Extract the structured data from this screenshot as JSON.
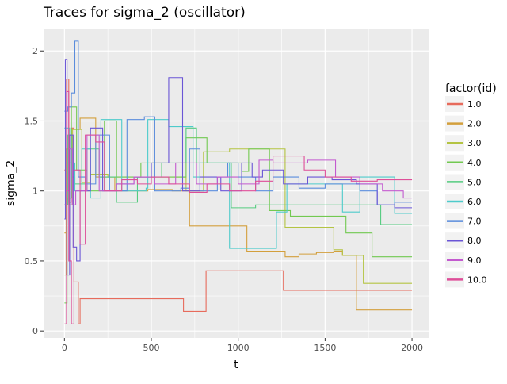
{
  "chart_data": {
    "type": "line",
    "title": "Traces for sigma_2 (oscillator)",
    "xlabel": "t",
    "ylabel": "sigma_2",
    "xlim": [
      -120,
      2100
    ],
    "ylim": [
      -0.05,
      2.16
    ],
    "x_ticks": [
      0,
      500,
      1000,
      1500,
      2000
    ],
    "x_tick_labels": [
      "0",
      "500",
      "1000",
      "1500",
      "2000"
    ],
    "y_ticks": [
      0,
      0.5,
      1,
      1.5,
      2
    ],
    "y_tick_labels": [
      "0",
      "0.5",
      "1",
      "1.5",
      "2"
    ],
    "grid": true,
    "legend": {
      "title": "factor(id)",
      "position": "right"
    },
    "series": [
      {
        "name": "1.0",
        "color": "#E76B5C",
        "steps": [
          [
            0,
            1.15
          ],
          [
            12,
            1.8
          ],
          [
            25,
            0.92
          ],
          [
            38,
            1.45
          ],
          [
            55,
            0.35
          ],
          [
            80,
            0.05
          ],
          [
            90,
            0.23
          ],
          [
            685,
            0.14
          ],
          [
            815,
            0.43
          ],
          [
            1260,
            0.29
          ],
          [
            2000,
            0.29
          ]
        ]
      },
      {
        "name": "2.0",
        "color": "#D39F3C",
        "steps": [
          [
            0,
            0.7
          ],
          [
            12,
            1.2
          ],
          [
            28,
            0.95
          ],
          [
            45,
            1.44
          ],
          [
            90,
            1.52
          ],
          [
            180,
            1.1
          ],
          [
            290,
            1.0
          ],
          [
            480,
            1.01
          ],
          [
            620,
            1.0
          ],
          [
            720,
            0.75
          ],
          [
            1050,
            0.57
          ],
          [
            1270,
            0.53
          ],
          [
            1350,
            0.55
          ],
          [
            1450,
            0.56
          ],
          [
            1550,
            0.57
          ],
          [
            1600,
            0.54
          ],
          [
            1680,
            0.15
          ],
          [
            2000,
            0.15
          ]
        ]
      },
      {
        "name": "3.0",
        "color": "#B4C443",
        "steps": [
          [
            0,
            0.4
          ],
          [
            10,
            1.3
          ],
          [
            28,
            0.9
          ],
          [
            45,
            1.44
          ],
          [
            100,
            1.06
          ],
          [
            150,
            1.12
          ],
          [
            250,
            1.1
          ],
          [
            400,
            1.1
          ],
          [
            600,
            1.1
          ],
          [
            700,
            1.0
          ],
          [
            800,
            1.28
          ],
          [
            950,
            1.3
          ],
          [
            1270,
            0.74
          ],
          [
            1550,
            0.58
          ],
          [
            1600,
            0.54
          ],
          [
            1720,
            0.34
          ],
          [
            2000,
            0.34
          ]
        ]
      },
      {
        "name": "4.0",
        "color": "#72C951",
        "steps": [
          [
            0,
            0.2
          ],
          [
            15,
            0.95
          ],
          [
            40,
            1.6
          ],
          [
            70,
            1.15
          ],
          [
            130,
            1.0
          ],
          [
            230,
            1.5
          ],
          [
            300,
            1.1
          ],
          [
            440,
            1.2
          ],
          [
            560,
            1.1
          ],
          [
            700,
            1.38
          ],
          [
            820,
            1.2
          ],
          [
            900,
            1.2
          ],
          [
            1020,
            1.14
          ],
          [
            1060,
            1.3
          ],
          [
            1180,
            0.86
          ],
          [
            1300,
            0.82
          ],
          [
            1550,
            0.82
          ],
          [
            1620,
            0.7
          ],
          [
            1770,
            0.53
          ],
          [
            2000,
            0.53
          ]
        ]
      },
      {
        "name": "5.0",
        "color": "#55CC80",
        "steps": [
          [
            0,
            0.9
          ],
          [
            20,
            1.4
          ],
          [
            40,
            1.1
          ],
          [
            60,
            1.05
          ],
          [
            130,
            1.3
          ],
          [
            200,
            1.1
          ],
          [
            300,
            0.92
          ],
          [
            420,
            1.1
          ],
          [
            560,
            1.2
          ],
          [
            700,
            1.45
          ],
          [
            760,
            1.2
          ],
          [
            850,
            1.2
          ],
          [
            960,
            0.88
          ],
          [
            1100,
            0.9
          ],
          [
            1200,
            0.9
          ],
          [
            1380,
            0.9
          ],
          [
            1560,
            0.9
          ],
          [
            1820,
            0.76
          ],
          [
            2000,
            0.76
          ]
        ]
      },
      {
        "name": "6.0",
        "color": "#4ECBCB",
        "steps": [
          [
            0,
            1.45
          ],
          [
            30,
            1.2
          ],
          [
            60,
            1.0
          ],
          [
            100,
            1.3
          ],
          [
            150,
            0.95
          ],
          [
            210,
            1.51
          ],
          [
            330,
            1.0
          ],
          [
            470,
            1.02
          ],
          [
            480,
            1.51
          ],
          [
            600,
            1.46
          ],
          [
            740,
            1.1
          ],
          [
            780,
            1.2
          ],
          [
            950,
            0.59
          ],
          [
            1100,
            0.59
          ],
          [
            1220,
            0.85
          ],
          [
            1280,
            1.05
          ],
          [
            1600,
            0.85
          ],
          [
            1700,
            1.1
          ],
          [
            1900,
            0.84
          ],
          [
            2000,
            0.84
          ]
        ]
      },
      {
        "name": "7.0",
        "color": "#5A8CDC",
        "steps": [
          [
            0,
            1.57
          ],
          [
            20,
            1.6
          ],
          [
            40,
            1.7
          ],
          [
            60,
            2.07
          ],
          [
            80,
            1.1
          ],
          [
            120,
            1.05
          ],
          [
            180,
            1.4
          ],
          [
            260,
            1.0
          ],
          [
            360,
            1.51
          ],
          [
            460,
            1.53
          ],
          [
            520,
            1.0
          ],
          [
            670,
            1.02
          ],
          [
            720,
            1.3
          ],
          [
            780,
            1.0
          ],
          [
            880,
            1.1
          ],
          [
            940,
            1.2
          ],
          [
            1000,
            1.1
          ],
          [
            1100,
            1.0
          ],
          [
            1200,
            1.1
          ],
          [
            1350,
            1.02
          ],
          [
            1500,
            1.05
          ],
          [
            1700,
            1.0
          ],
          [
            1800,
            0.9
          ],
          [
            1900,
            0.92
          ],
          [
            2000,
            0.92
          ]
        ]
      },
      {
        "name": "8.0",
        "color": "#6A55D6",
        "steps": [
          [
            0,
            0.8
          ],
          [
            5,
            1.94
          ],
          [
            15,
            0.4
          ],
          [
            30,
            1.4
          ],
          [
            50,
            0.6
          ],
          [
            70,
            0.5
          ],
          [
            90,
            1.0
          ],
          [
            150,
            1.45
          ],
          [
            220,
            1.0
          ],
          [
            300,
            1.05
          ],
          [
            400,
            1.1
          ],
          [
            500,
            1.2
          ],
          [
            600,
            1.81
          ],
          [
            680,
            1.0
          ],
          [
            780,
            1.1
          ],
          [
            900,
            1.0
          ],
          [
            1020,
            1.2
          ],
          [
            1080,
            1.1
          ],
          [
            1140,
            1.15
          ],
          [
            1260,
            1.05
          ],
          [
            1400,
            1.1
          ],
          [
            1540,
            1.08
          ],
          [
            1680,
            1.05
          ],
          [
            1800,
            0.9
          ],
          [
            1900,
            0.88
          ],
          [
            2000,
            0.88
          ]
        ]
      },
      {
        "name": "9.0",
        "color": "#C35ACF",
        "steps": [
          [
            0,
            0.9
          ],
          [
            12,
            1.0
          ],
          [
            25,
            1.3
          ],
          [
            45,
            0.9
          ],
          [
            65,
            1.0
          ],
          [
            130,
            1.4
          ],
          [
            200,
            1.0
          ],
          [
            300,
            1.05
          ],
          [
            400,
            1.1
          ],
          [
            520,
            1.05
          ],
          [
            640,
            1.2
          ],
          [
            760,
            1.05
          ],
          [
            880,
            1.1
          ],
          [
            1000,
            1.05
          ],
          [
            1120,
            1.22
          ],
          [
            1200,
            1.2
          ],
          [
            1400,
            1.22
          ],
          [
            1560,
            1.1
          ],
          [
            1700,
            1.05
          ],
          [
            1830,
            1.0
          ],
          [
            1950,
            0.95
          ],
          [
            2000,
            0.95
          ]
        ]
      },
      {
        "name": "10.0",
        "color": "#DE4E98",
        "steps": [
          [
            0,
            0.05
          ],
          [
            12,
            1.71
          ],
          [
            25,
            0.5
          ],
          [
            40,
            0.05
          ],
          [
            55,
            1.15
          ],
          [
            90,
            0.62
          ],
          [
            120,
            1.4
          ],
          [
            180,
            1.35
          ],
          [
            230,
            1.0
          ],
          [
            330,
            1.08
          ],
          [
            420,
            1.05
          ],
          [
            500,
            1.1
          ],
          [
            600,
            1.05
          ],
          [
            720,
            0.99
          ],
          [
            820,
            1.05
          ],
          [
            950,
            1.0
          ],
          [
            1100,
            1.07
          ],
          [
            1200,
            1.25
          ],
          [
            1380,
            1.15
          ],
          [
            1500,
            1.1
          ],
          [
            1650,
            1.07
          ],
          [
            1800,
            1.08
          ],
          [
            2000,
            1.08
          ]
        ]
      }
    ]
  }
}
